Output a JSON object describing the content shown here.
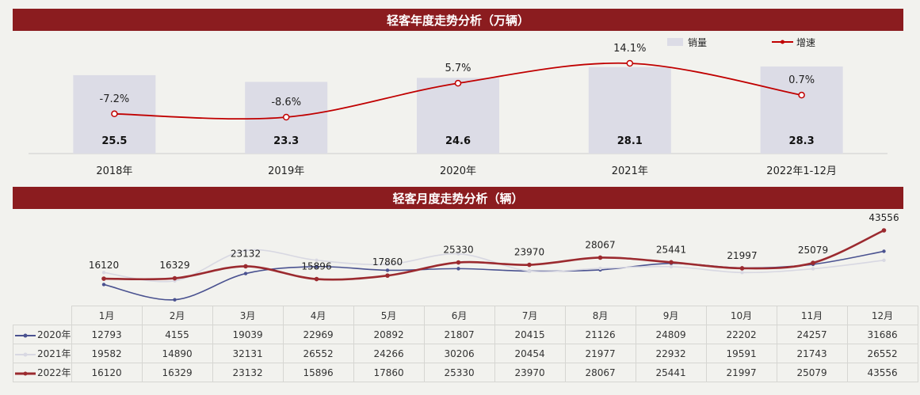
{
  "top_banner": {
    "title": "轻客年度走势分析（万辆）"
  },
  "bottom_banner": {
    "title": "轻客月度走势分析（辆）"
  },
  "chart_data": [
    {
      "type": "bar",
      "title": "轻客年度走势分析（万辆）",
      "categories": [
        "2018年",
        "2019年",
        "2020年",
        "2021年",
        "2022年1-12月"
      ],
      "series": [
        {
          "name": "销量",
          "type": "bar",
          "values": [
            25.5,
            23.3,
            24.6,
            28.1,
            28.3
          ],
          "labels": [
            "25.5",
            "23.3",
            "24.6",
            "28.1",
            "28.3"
          ],
          "color": "#dcdce6"
        },
        {
          "name": "增速",
          "type": "line",
          "values": [
            -7.2,
            -8.6,
            5.7,
            14.1,
            0.7
          ],
          "labels": [
            "-7.2%",
            "-8.6%",
            "5.7%",
            "14.1%",
            "0.7%"
          ],
          "color": "#c00000"
        }
      ],
      "legend_position": "top-right"
    },
    {
      "type": "line",
      "title": "轻客月度走势分析（辆）",
      "categories": [
        "1月",
        "2月",
        "3月",
        "4月",
        "5月",
        "6月",
        "7月",
        "8月",
        "9月",
        "10月",
        "11月",
        "12月"
      ],
      "series": [
        {
          "name": "2020年",
          "values": [
            12793,
            4155,
            19039,
            22969,
            20892,
            21807,
            20415,
            21126,
            24809,
            22202,
            24257,
            31686
          ],
          "color": "#4a5290"
        },
        {
          "name": "2021年",
          "values": [
            19582,
            14890,
            32131,
            26552,
            24266,
            30206,
            20454,
            21977,
            22932,
            19591,
            21743,
            26552
          ],
          "color": "#d8d8e2"
        },
        {
          "name": "2022年",
          "values": [
            16120,
            16329,
            23132,
            15896,
            17860,
            25330,
            23970,
            28067,
            25441,
            21997,
            25079,
            43556
          ],
          "color": "#9b2a2f",
          "labels": [
            "16120",
            "16329",
            "23132",
            "15896",
            "17860",
            "25330",
            "23970",
            "28067",
            "25441",
            "21997",
            "25079",
            "43556"
          ]
        }
      ]
    }
  ]
}
